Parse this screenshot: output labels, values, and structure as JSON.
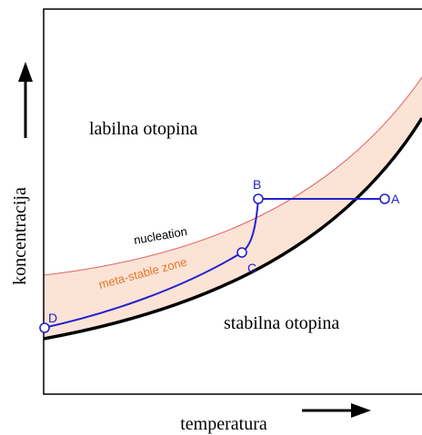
{
  "axes": {
    "x_label": "temperatura",
    "y_label": "koncentracija"
  },
  "regions": {
    "labile": "labilna otopina",
    "stable": "stabilna otopina",
    "metastable": "meta-stable zone"
  },
  "curves": {
    "nucleation": "nucleation"
  },
  "points": {
    "A": "A",
    "B": "B",
    "C": "C",
    "D": "D"
  },
  "colors": {
    "path": "#2222cc",
    "nucleation_curve": "#e06060",
    "zone_fill": "#fbe3d6",
    "zone_label": "#e07828",
    "solubility_curve": "#000000"
  }
}
